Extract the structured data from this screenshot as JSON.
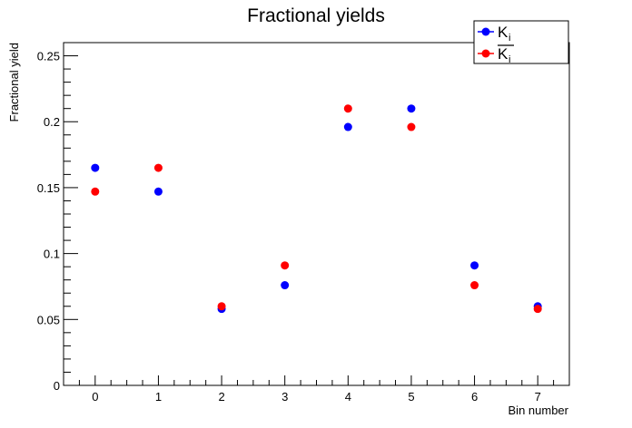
{
  "chart_data": {
    "type": "scatter",
    "title": "Fractional yields",
    "xlabel": "Bin number",
    "ylabel": "Fractional yield",
    "xlim": [
      -0.5,
      7.5
    ],
    "ylim": [
      0,
      0.26
    ],
    "x_ticks": [
      "0",
      "1",
      "2",
      "3",
      "4",
      "5",
      "6",
      "7"
    ],
    "y_ticks": [
      {
        "value": 0,
        "label": "0"
      },
      {
        "value": 0.05,
        "label": "0.05"
      },
      {
        "value": 0.1,
        "label": "0.1"
      },
      {
        "value": 0.15,
        "label": "0.15"
      },
      {
        "value": 0.2,
        "label": "0.2"
      },
      {
        "value": 0.25,
        "label": "0.25"
      }
    ],
    "grid": false,
    "legend_position": "top-right",
    "series": [
      {
        "name": "K",
        "subscript": "i",
        "overline": false,
        "color": "#0000ff",
        "x": [
          0,
          1,
          2,
          3,
          4,
          5,
          6,
          7
        ],
        "values": [
          0.165,
          0.147,
          0.058,
          0.076,
          0.196,
          0.21,
          0.091,
          0.06
        ]
      },
      {
        "name": "K",
        "subscript": "i",
        "overline": true,
        "color": "#ff0000",
        "x": [
          0,
          1,
          2,
          3,
          4,
          5,
          6,
          7
        ],
        "values": [
          0.147,
          0.165,
          0.06,
          0.091,
          0.21,
          0.196,
          0.076,
          0.058
        ]
      }
    ]
  }
}
